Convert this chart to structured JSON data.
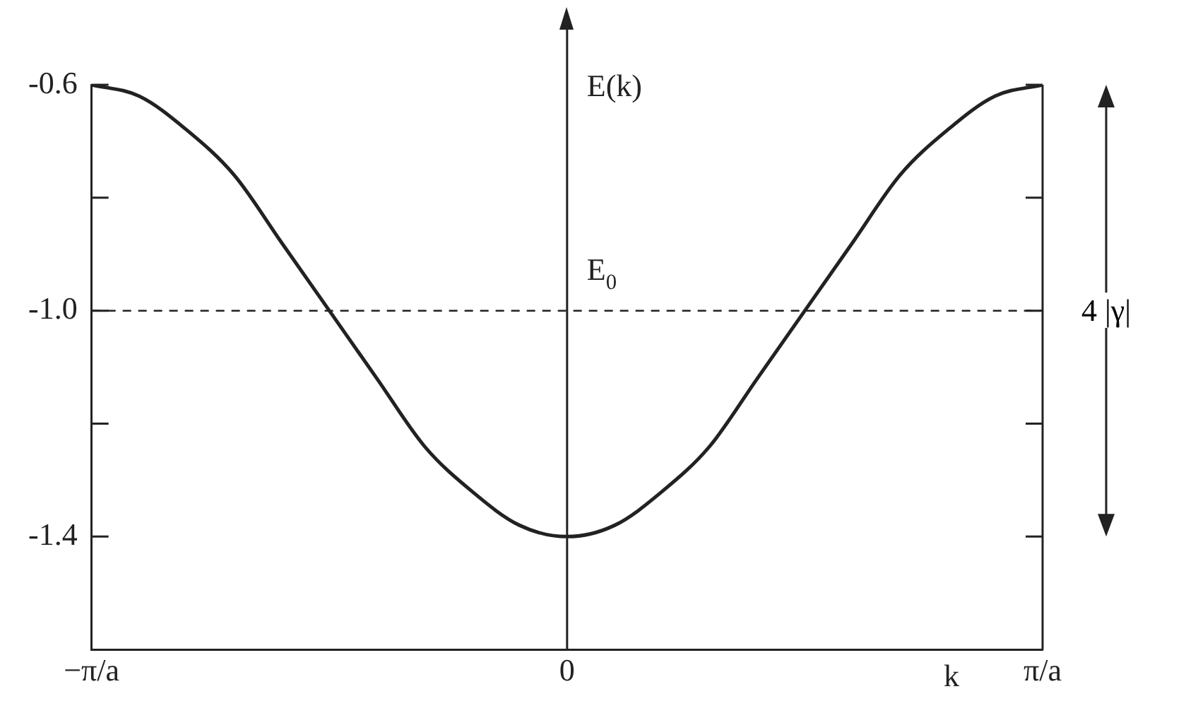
{
  "chart_data": {
    "type": "line",
    "xlabel": "k",
    "ylabel": "E(k)",
    "categories": [
      "−π/a",
      null,
      null,
      null,
      null,
      null,
      null,
      null,
      null,
      null,
      "0",
      null,
      null,
      null,
      null,
      null,
      null,
      null,
      null,
      null,
      "π/a"
    ],
    "series": [
      {
        "color": "#222222",
        "values": [
          -0.6,
          -0.62,
          -0.68,
          -0.76,
          -0.88,
          -1.0,
          -1.12,
          -1.24,
          -1.32,
          -1.38,
          -1.4,
          -1.38,
          -1.32,
          -1.24,
          -1.12,
          -1.0,
          -0.88,
          -0.76,
          -0.68,
          -0.62,
          -0.6
        ]
      }
    ],
    "ylim": [
      -1.6,
      -0.6
    ],
    "yticks": [
      -0.6,
      {
        "value": -0.8,
        "label": null
      },
      {
        "value": -1.0,
        "label": "-1.0"
      },
      {
        "value": -1.2,
        "label": null
      },
      -1.4
    ],
    "ref_lines": [
      {
        "axis": "y",
        "value": -1.0,
        "label": "E$_{0}$",
        "line_style": "dashed",
        "color": "#222222"
      }
    ],
    "annotations": [
      "4 |γ|"
    ],
    "grid": false,
    "legend": false,
    "marker": "none",
    "line_style": "solid"
  }
}
